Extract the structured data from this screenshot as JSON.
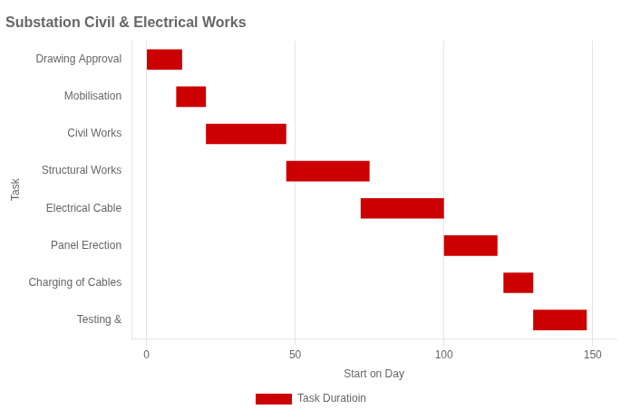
{
  "chart_data": {
    "type": "bar",
    "orientation": "horizontal",
    "title": "Substation Civil & Electrical Works",
    "x_label": "Start on Day",
    "y_label": "Task",
    "categories": [
      "Drawing Approval",
      "Mobilisation",
      "Civil Works",
      "Structural Works",
      "Electrical Cable",
      "Panel Erection",
      "Charging of Cables",
      "Testing &"
    ],
    "starts": [
      0,
      10,
      20,
      47,
      72,
      100,
      120,
      130
    ],
    "series": [
      {
        "name": "Task Duratioin",
        "color": "#cc0000",
        "values": [
          12,
          10,
          27,
          28,
          28,
          18,
          10,
          18
        ]
      }
    ],
    "xlim": [
      -5,
      158
    ],
    "xticks": [
      0,
      50,
      100,
      150
    ],
    "grid": "x",
    "legend": "bottom"
  }
}
